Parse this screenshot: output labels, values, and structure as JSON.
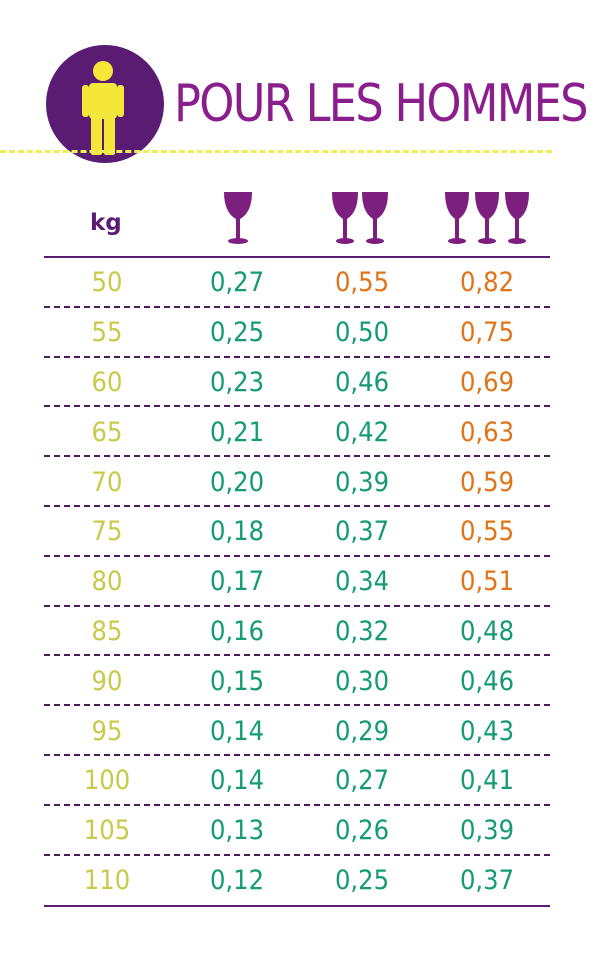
{
  "header": {
    "title": "POUR LES HOMMES",
    "icon": "person-icon"
  },
  "columns": {
    "kg_label": "kg",
    "glass_counts": [
      1,
      2,
      3
    ]
  },
  "colors": {
    "purple": "#5a1c72",
    "title_purple": "#8b1e8d",
    "person_yellow": "#f5e63a",
    "kg_yellow": "#c9c94a",
    "green": "#159b73",
    "orange": "#e07418",
    "dash_yellow": "#f1ee55"
  },
  "rows": [
    {
      "kg": "50",
      "v1": "0,27",
      "v2": "0,55",
      "v3": "0,82",
      "c2": "orange",
      "c3": "orange"
    },
    {
      "kg": "55",
      "v1": "0,25",
      "v2": "0,50",
      "v3": "0,75",
      "c2": "green",
      "c3": "orange"
    },
    {
      "kg": "60",
      "v1": "0,23",
      "v2": "0,46",
      "v3": "0,69",
      "c2": "green",
      "c3": "orange"
    },
    {
      "kg": "65",
      "v1": "0,21",
      "v2": "0,42",
      "v3": "0,63",
      "c2": "green",
      "c3": "orange"
    },
    {
      "kg": "70",
      "v1": "0,20",
      "v2": "0,39",
      "v3": "0,59",
      "c2": "green",
      "c3": "orange"
    },
    {
      "kg": "75",
      "v1": "0,18",
      "v2": "0,37",
      "v3": "0,55",
      "c2": "green",
      "c3": "orange"
    },
    {
      "kg": "80",
      "v1": "0,17",
      "v2": "0,34",
      "v3": "0,51",
      "c2": "green",
      "c3": "orange"
    },
    {
      "kg": "85",
      "v1": "0,16",
      "v2": "0,32",
      "v3": "0,48",
      "c2": "green",
      "c3": "green"
    },
    {
      "kg": "90",
      "v1": "0,15",
      "v2": "0,30",
      "v3": "0,46",
      "c2": "green",
      "c3": "green"
    },
    {
      "kg": "95",
      "v1": "0,14",
      "v2": "0,29",
      "v3": "0,43",
      "c2": "green",
      "c3": "green"
    },
    {
      "kg": "100",
      "v1": "0,14",
      "v2": "0,27",
      "v3": "0,41",
      "c2": "green",
      "c3": "green"
    },
    {
      "kg": "105",
      "v1": "0,13",
      "v2": "0,26",
      "v3": "0,39",
      "c2": "green",
      "c3": "green"
    },
    {
      "kg": "110",
      "v1": "0,12",
      "v2": "0,25",
      "v3": "0,37",
      "c2": "green",
      "c3": "green"
    }
  ]
}
